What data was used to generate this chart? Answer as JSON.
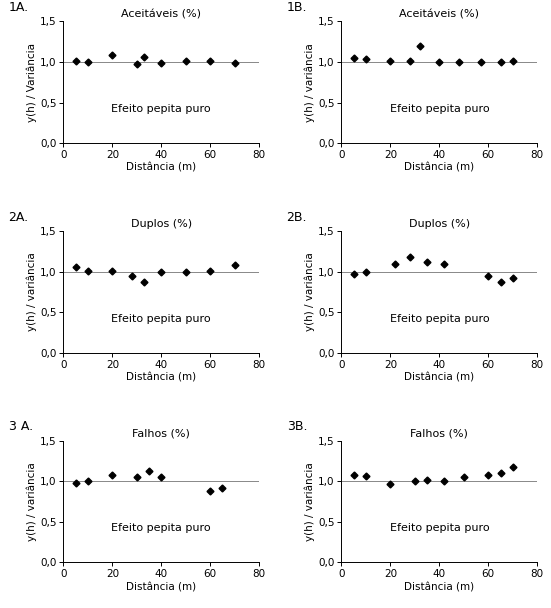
{
  "panels": [
    {
      "label": "1A.",
      "title": "Aceitáveis (%)",
      "x": [
        5,
        10,
        20,
        30,
        33,
        40,
        50,
        60,
        70
      ],
      "y": [
        1.01,
        1.0,
        1.09,
        0.97,
        1.06,
        0.99,
        1.01,
        1.01,
        0.99
      ],
      "line_y": 1.0,
      "text": "Efeito pepita puro",
      "ylabel": "y(h) / Variância"
    },
    {
      "label": "1B.",
      "title": "Aceitáveis (%)",
      "x": [
        5,
        10,
        20,
        28,
        32,
        40,
        48,
        57,
        65,
        70
      ],
      "y": [
        1.05,
        1.04,
        1.01,
        1.01,
        1.2,
        1.0,
        1.0,
        1.0,
        1.0,
        1.01
      ],
      "line_y": 1.0,
      "text": "Efeito pepita puro",
      "ylabel": "y(h) / variância"
    },
    {
      "label": "2A.",
      "title": "Duplos (%)",
      "x": [
        5,
        10,
        20,
        28,
        33,
        40,
        50,
        60,
        70
      ],
      "y": [
        1.06,
        1.01,
        1.01,
        0.95,
        0.87,
        0.99,
        1.0,
        1.01,
        1.08
      ],
      "line_y": 1.0,
      "text": "Efeito pepita puro",
      "ylabel": "y(h) / variância"
    },
    {
      "label": "2B.",
      "title": "Duplos (%)",
      "x": [
        5,
        10,
        22,
        28,
        35,
        42,
        60,
        65,
        70
      ],
      "y": [
        0.97,
        1.0,
        1.09,
        1.18,
        1.12,
        1.09,
        0.95,
        0.87,
        0.92
      ],
      "line_y": 1.0,
      "text": "Efeito pepita puro",
      "ylabel": "y(h) / variância"
    },
    {
      "label": "3 A.",
      "title": "Falhos (%)",
      "x": [
        5,
        10,
        20,
        30,
        35,
        40,
        60,
        65
      ],
      "y": [
        0.98,
        1.0,
        1.08,
        1.05,
        1.13,
        1.05,
        0.88,
        0.92
      ],
      "line_y": 1.0,
      "text": "Efeito pepita puro",
      "ylabel": "y(h) / variância"
    },
    {
      "label": "3B.",
      "title": "Falhos (%)",
      "x": [
        5,
        10,
        20,
        30,
        35,
        42,
        50,
        60,
        65,
        70
      ],
      "y": [
        1.07,
        1.06,
        0.97,
        1.0,
        1.02,
        1.0,
        1.05,
        1.08,
        1.1,
        1.18
      ],
      "line_y": 1.0,
      "text": "Efeito pepita puro",
      "ylabel": "y(h) / variância"
    }
  ],
  "xlabel": "Distância (m)",
  "xlim": [
    0,
    80
  ],
  "ylim": [
    0.0,
    1.5
  ],
  "yticks": [
    0.0,
    0.5,
    1.0,
    1.5
  ],
  "yticklabels": [
    "0,0",
    "0,5",
    "1,0",
    "1,5"
  ],
  "xticks": [
    0,
    20,
    40,
    60,
    80
  ],
  "marker": "D",
  "markersize": 3.5,
  "markercolor": "black",
  "linecolor": "#888888",
  "linewidth": 0.7,
  "fontsize_title": 8,
  "fontsize_label": 7.5,
  "fontsize_tick": 7.5,
  "fontsize_text": 8,
  "fontsize_panel_label": 9
}
